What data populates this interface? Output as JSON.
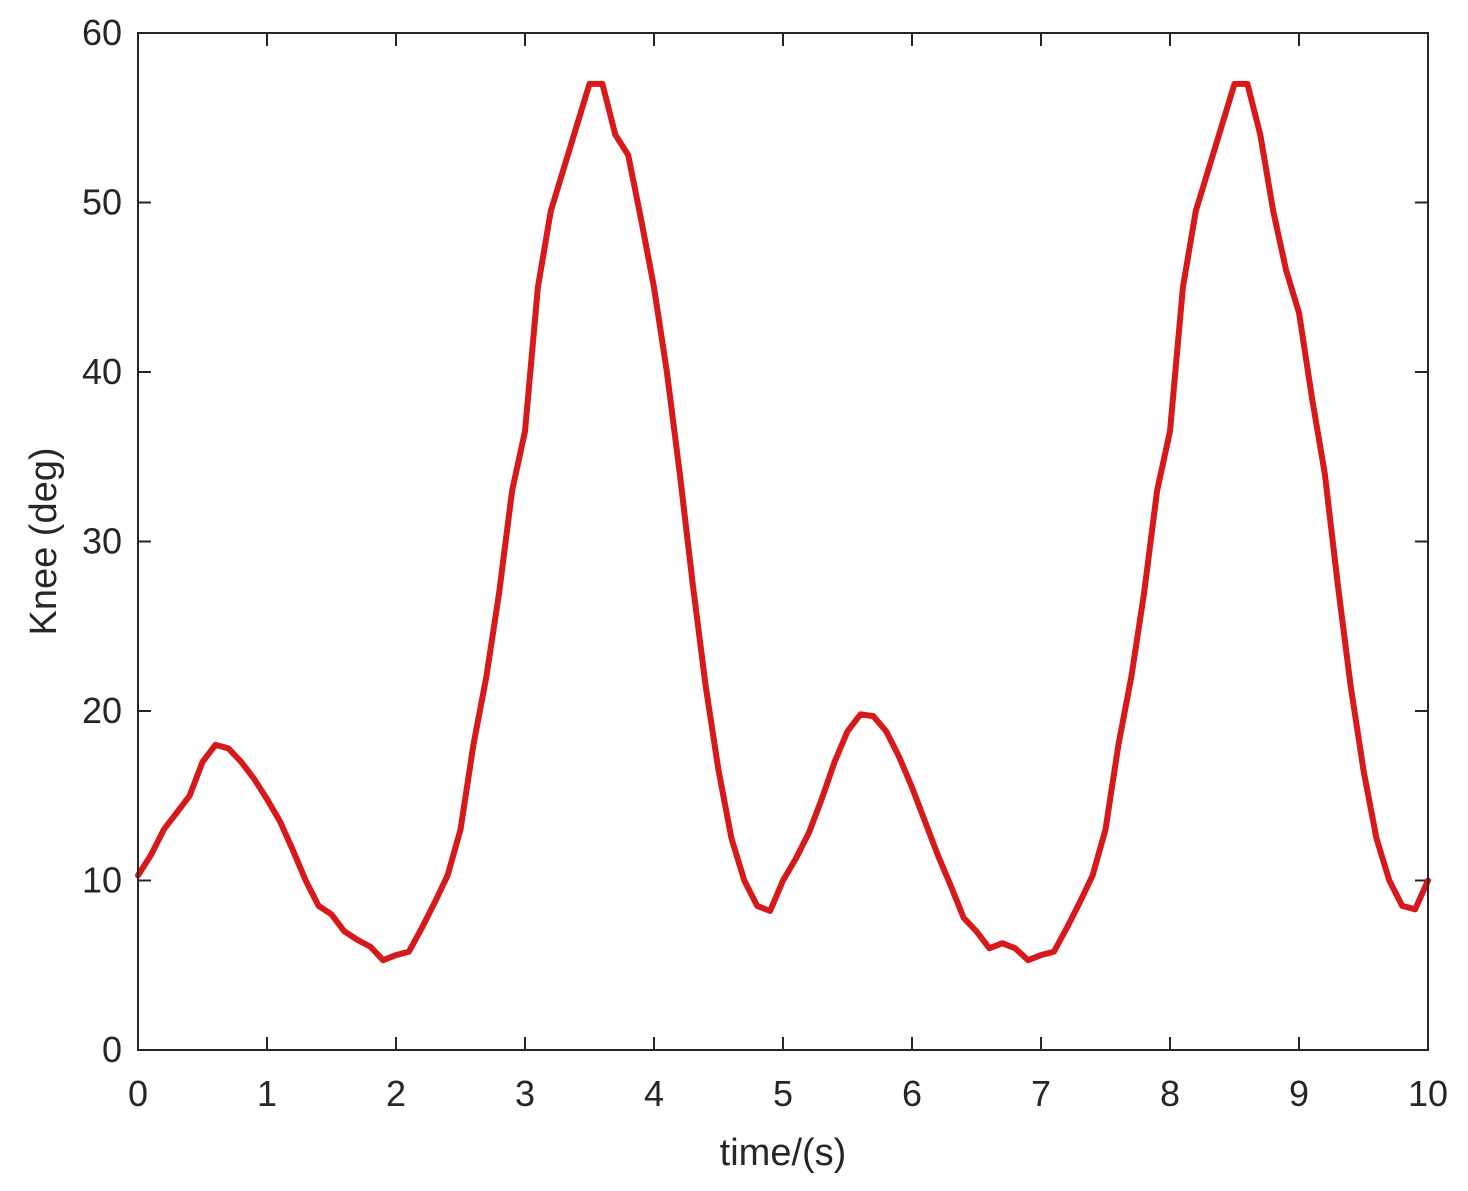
{
  "chart_data": {
    "type": "line",
    "title": "",
    "xlabel": "time/(s)",
    "ylabel": "Knee (deg)",
    "xlim": [
      0,
      10
    ],
    "ylim": [
      0,
      60
    ],
    "xticks": [
      0,
      1,
      2,
      3,
      4,
      5,
      6,
      7,
      8,
      9,
      10
    ],
    "yticks": [
      0,
      10,
      20,
      30,
      40,
      50,
      60
    ],
    "grid": false,
    "box": true,
    "legend": null,
    "colors": {
      "line": "#d7191c",
      "axis": "#262626"
    },
    "series": [
      {
        "x": [
          0,
          0.1,
          0.2,
          0.3,
          0.4,
          0.5,
          0.6,
          0.7,
          0.8,
          0.9,
          1.0,
          1.1,
          1.2,
          1.3,
          1.4,
          1.5,
          1.6,
          1.7,
          1.8,
          1.9,
          2.0,
          2.1,
          2.2,
          2.3,
          2.4,
          2.5,
          2.6,
          2.7,
          2.8,
          2.9,
          3.0,
          3.1,
          3.2,
          3.3,
          3.4,
          3.5,
          3.6,
          3.7,
          3.8,
          3.9,
          4.0,
          4.1,
          4.2,
          4.3,
          4.4,
          4.5,
          4.6,
          4.7,
          4.8,
          4.9,
          5.0,
          5.1,
          5.2,
          5.3,
          5.4,
          5.5,
          5.6,
          5.7,
          5.8,
          5.9,
          6.0,
          6.1,
          6.2,
          6.3,
          6.4,
          6.5,
          6.6,
          6.7,
          6.8,
          6.9,
          7.0,
          7.1,
          7.2,
          7.3,
          7.4,
          7.5,
          7.6,
          7.7,
          7.8,
          7.9,
          8.0,
          8.1,
          8.2,
          8.3,
          8.4,
          8.5,
          8.6,
          8.7,
          8.8,
          8.9,
          9.0,
          9.1,
          9.2,
          9.3,
          9.4,
          9.5,
          9.6,
          9.7,
          9.8,
          9.9,
          10.0
        ],
        "y": [
          10.3,
          11.5,
          13.0,
          14.0,
          15.0,
          17.0,
          18.0,
          17.8,
          17.0,
          16.0,
          14.8,
          13.5,
          11.8,
          10.0,
          8.5,
          8.0,
          7.0,
          6.5,
          6.1,
          5.3,
          5.6,
          5.8,
          7.2,
          8.7,
          10.3,
          13.0,
          18.0,
          22.0,
          27.0,
          33.0,
          36.5,
          45.0,
          49.5,
          52.0,
          54.5,
          57.0,
          57.0,
          54.0,
          52.8,
          49.0,
          45.0,
          40.0,
          34.0,
          27.5,
          21.5,
          16.5,
          12.5,
          10.0,
          8.5,
          8.2,
          10.0,
          11.3,
          12.8,
          14.8,
          17.0,
          18.8,
          19.8,
          19.7,
          18.8,
          17.3,
          15.5,
          13.5,
          11.5,
          9.7,
          7.8,
          7.0,
          6.0,
          6.3,
          6.0,
          5.3,
          5.6,
          5.8,
          7.2,
          8.7,
          10.3,
          13.0,
          18.0,
          22.0,
          27.0,
          33.0,
          36.5,
          45.0,
          49.5,
          52.0,
          54.5,
          57.0,
          57.0,
          54.0,
          49.5,
          46.0,
          43.5,
          38.5,
          34.0,
          27.5,
          21.5,
          16.5,
          12.5,
          10.0,
          8.5,
          8.3,
          10.0
        ]
      }
    ]
  }
}
